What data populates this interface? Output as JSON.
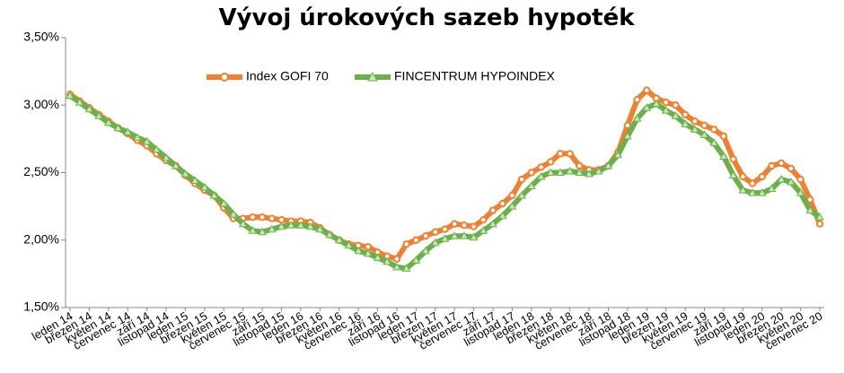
{
  "chart_data": {
    "type": "line",
    "title": "Vývoj úrokových sazeb hypoték",
    "categories": [
      "leden 14",
      null,
      "březen 14",
      null,
      "květen 14",
      null,
      "červenec 14",
      null,
      "září 14",
      null,
      "listopad 14",
      null,
      "leden 15",
      null,
      "březen 15",
      null,
      "květen 15",
      null,
      "červenec 15",
      null,
      "září 15",
      null,
      "listopad 15",
      null,
      "leden 16",
      null,
      "březen 16",
      null,
      "květen 16",
      null,
      "červenec 16",
      null,
      "září 16",
      null,
      "listopad 16",
      null,
      "leden 17",
      null,
      "březen 17",
      null,
      "květen 17",
      null,
      "červenec 17",
      null,
      "září 17",
      null,
      "listopad 17",
      null,
      "leden 18",
      null,
      "březen 18",
      null,
      "květen 18",
      null,
      "červenec 18",
      null,
      "září 18",
      null,
      "listopad 18",
      null,
      "leden 19",
      null,
      "březen 19",
      null,
      "květen 19",
      null,
      "červenec 19",
      null,
      "září 19",
      null,
      "listopad 19",
      null,
      "leden 20",
      null,
      "březen 20",
      null,
      "květen 20",
      null,
      "červenec 20"
    ],
    "series": [
      {
        "name": "Index GOFI 70",
        "color": "#f08030",
        "marker": "circle",
        "values": [
          3.08,
          3.03,
          2.98,
          2.93,
          2.88,
          2.83,
          2.79,
          2.74,
          2.7,
          2.64,
          2.59,
          2.55,
          2.48,
          2.42,
          2.37,
          2.33,
          2.24,
          2.16,
          2.16,
          2.17,
          2.17,
          2.16,
          2.15,
          2.14,
          2.14,
          2.13,
          2.09,
          2.04,
          2.0,
          1.97,
          1.96,
          1.95,
          1.91,
          1.88,
          1.86,
          1.97,
          2.0,
          2.03,
          2.06,
          2.08,
          2.12,
          2.11,
          2.1,
          2.15,
          2.22,
          2.27,
          2.33,
          2.45,
          2.5,
          2.54,
          2.58,
          2.64,
          2.64,
          2.55,
          2.52,
          2.52,
          2.55,
          2.65,
          2.85,
          3.04,
          3.11,
          3.05,
          3.02,
          3.0,
          2.93,
          2.88,
          2.85,
          2.82,
          2.77,
          2.6,
          2.47,
          2.42,
          2.47,
          2.55,
          2.57,
          2.53,
          2.45,
          2.3,
          2.12
        ]
      },
      {
        "name": "FINCENTRUM HYPOINDEX",
        "color": "#6ab04c",
        "marker": "triangle",
        "values": [
          3.07,
          3.02,
          2.97,
          2.92,
          2.87,
          2.83,
          2.8,
          2.76,
          2.73,
          2.67,
          2.61,
          2.55,
          2.49,
          2.44,
          2.39,
          2.33,
          2.27,
          2.19,
          2.12,
          2.07,
          2.06,
          2.08,
          2.1,
          2.11,
          2.11,
          2.1,
          2.08,
          2.04,
          2.0,
          1.96,
          1.92,
          1.9,
          1.87,
          1.84,
          1.8,
          1.79,
          1.85,
          1.92,
          1.98,
          2.01,
          2.03,
          2.03,
          2.02,
          2.07,
          2.12,
          2.18,
          2.25,
          2.33,
          2.4,
          2.47,
          2.5,
          2.5,
          2.51,
          2.5,
          2.49,
          2.51,
          2.55,
          2.63,
          2.77,
          2.9,
          2.98,
          3.01,
          2.96,
          2.92,
          2.86,
          2.82,
          2.78,
          2.72,
          2.62,
          2.48,
          2.37,
          2.35,
          2.35,
          2.38,
          2.45,
          2.43,
          2.35,
          2.22,
          2.17
        ]
      }
    ],
    "ylim": [
      1.5,
      3.5
    ],
    "yticks": [
      {
        "value": 1.5,
        "label": "1,50%"
      },
      {
        "value": 2.0,
        "label": "2,00%"
      },
      {
        "value": 2.5,
        "label": "2,50%"
      },
      {
        "value": 3.0,
        "label": "3,00%"
      },
      {
        "value": 3.5,
        "label": "3,50%"
      }
    ],
    "grid": false,
    "legend": "top"
  }
}
